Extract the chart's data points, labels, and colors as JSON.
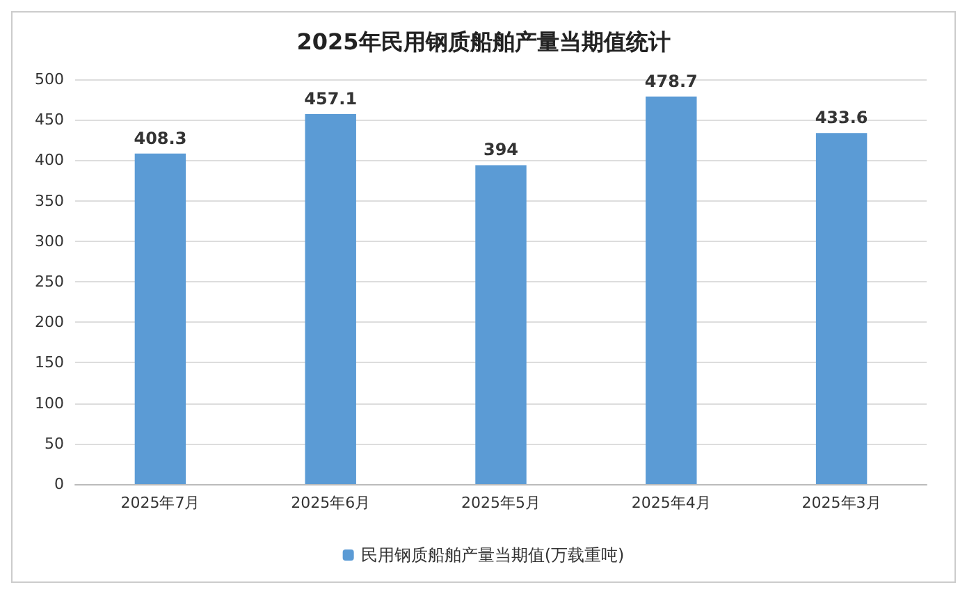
{
  "chart_data": {
    "type": "bar",
    "title": "2025年民用钢质船舶产量当期值统计",
    "categories": [
      "2025年7月",
      "2025年6月",
      "2025年5月",
      "2025年4月",
      "2025年3月"
    ],
    "series": [
      {
        "name": "民用钢质船舶产量当期值(万载重吨)",
        "color": "#5b9bd5",
        "values": [
          408.3,
          457.1,
          394,
          478.7,
          433.6
        ]
      }
    ],
    "ylim": [
      0,
      500
    ],
    "yticks": [
      0,
      50,
      100,
      150,
      200,
      250,
      300,
      350,
      400,
      450,
      500
    ],
    "grid": "y",
    "legend": "bottom",
    "data_labels": true
  }
}
